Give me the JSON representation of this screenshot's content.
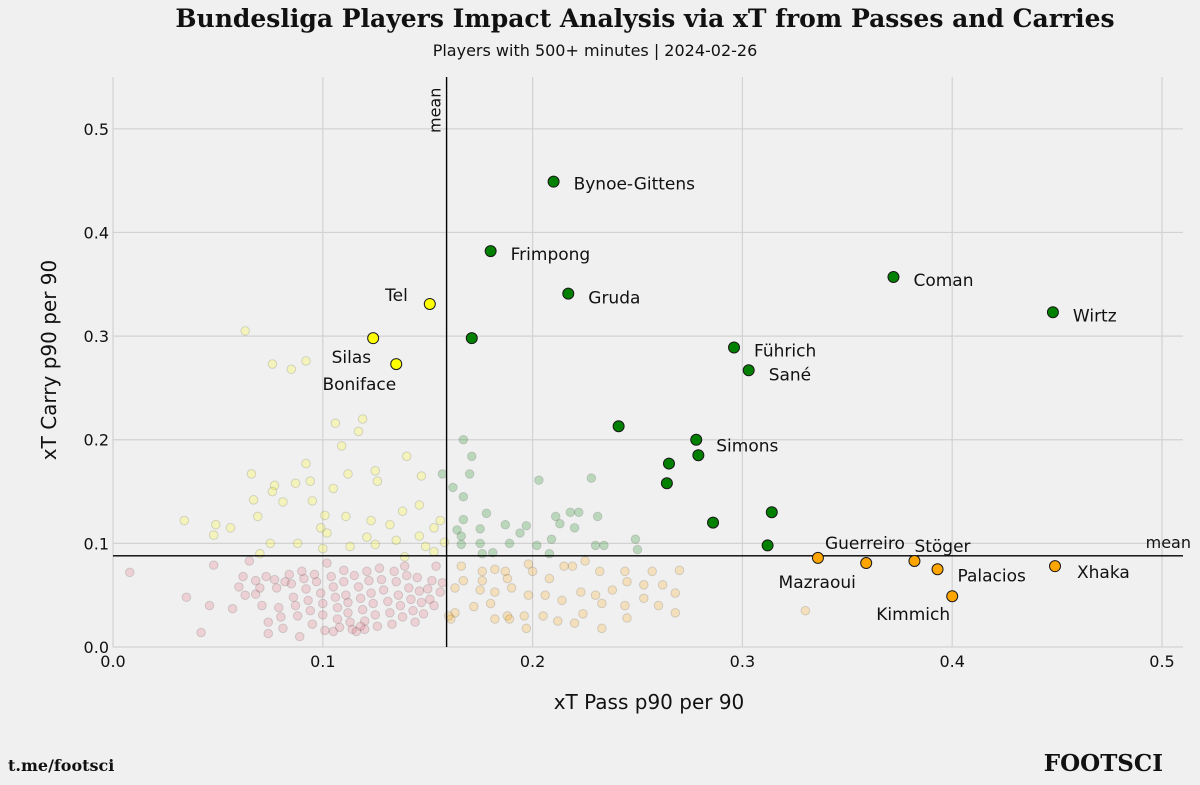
{
  "chart_data": {
    "type": "scatter",
    "title": "Bundesliga Players Impact Analysis via xT from Passes and Carries",
    "subtitle": "Players with 500+ minutes | 2024-02-26",
    "xlabel": "xT Pass p90 per 90",
    "ylabel": "xT Carry p90 per 90",
    "xlim": [
      0.0,
      0.51
    ],
    "ylim": [
      0.0,
      0.55
    ],
    "xticks": [
      "0.0",
      "0.1",
      "0.2",
      "0.3",
      "0.4",
      "0.5"
    ],
    "yticks": [
      "0.0",
      "0.1",
      "0.2",
      "0.3",
      "0.4",
      "0.5"
    ],
    "grid": true,
    "mean_x": 0.159,
    "mean_y": 0.088,
    "mean_label": "mean",
    "colors": {
      "high_both": "#008000",
      "high_carry": "#ffff00",
      "high_pass": "#ffa500",
      "low_both": "#e06070"
    },
    "highlighted": [
      {
        "label": "Bynoe-Gittens",
        "x": 0.21,
        "y": 0.449,
        "group": "high_both"
      },
      {
        "label": "Frimpong",
        "x": 0.18,
        "y": 0.382,
        "group": "high_both"
      },
      {
        "label": "Gruda",
        "x": 0.217,
        "y": 0.341,
        "group": "high_both"
      },
      {
        "label": "",
        "x": 0.171,
        "y": 0.298,
        "group": "high_both"
      },
      {
        "label": "Coman",
        "x": 0.372,
        "y": 0.357,
        "group": "high_both"
      },
      {
        "label": "Wirtz",
        "x": 0.448,
        "y": 0.323,
        "group": "high_both"
      },
      {
        "label": "Führich",
        "x": 0.296,
        "y": 0.289,
        "group": "high_both"
      },
      {
        "label": "Sané",
        "x": 0.303,
        "y": 0.267,
        "group": "high_both"
      },
      {
        "label": "",
        "x": 0.241,
        "y": 0.213,
        "group": "high_both"
      },
      {
        "label": "Simons",
        "x": 0.278,
        "y": 0.2,
        "group": "high_both"
      },
      {
        "label": "",
        "x": 0.279,
        "y": 0.185,
        "group": "high_both"
      },
      {
        "label": "",
        "x": 0.265,
        "y": 0.177,
        "group": "high_both"
      },
      {
        "label": "",
        "x": 0.264,
        "y": 0.158,
        "group": "high_both"
      },
      {
        "label": "",
        "x": 0.314,
        "y": 0.13,
        "group": "high_both"
      },
      {
        "label": "",
        "x": 0.286,
        "y": 0.12,
        "group": "high_both"
      },
      {
        "label": "",
        "x": 0.312,
        "y": 0.098,
        "group": "high_both"
      },
      {
        "label": "Tel",
        "x": 0.151,
        "y": 0.331,
        "group": "high_carry"
      },
      {
        "label": "Silas",
        "x": 0.124,
        "y": 0.298,
        "group": "high_carry"
      },
      {
        "label": "Boniface",
        "x": 0.135,
        "y": 0.273,
        "group": "high_carry"
      },
      {
        "label": "Guerreiro",
        "x": 0.336,
        "y": 0.086,
        "group": "high_pass"
      },
      {
        "label": "Mazraoui",
        "x": 0.359,
        "y": 0.081,
        "group": "high_pass"
      },
      {
        "label": "Stöger",
        "x": 0.382,
        "y": 0.083,
        "group": "high_pass"
      },
      {
        "label": "Palacios",
        "x": 0.393,
        "y": 0.075,
        "group": "high_pass"
      },
      {
        "label": "Xhaka",
        "x": 0.449,
        "y": 0.078,
        "group": "high_pass"
      },
      {
        "label": "Kimmich",
        "x": 0.4,
        "y": 0.049,
        "group": "high_pass"
      }
    ],
    "background_points": {
      "high_carry": [
        [
          0.063,
          0.305
        ],
        [
          0.076,
          0.273
        ],
        [
          0.085,
          0.268
        ],
        [
          0.092,
          0.276
        ],
        [
          0.119,
          0.22
        ],
        [
          0.117,
          0.208
        ],
        [
          0.106,
          0.216
        ],
        [
          0.109,
          0.194
        ],
        [
          0.14,
          0.184
        ],
        [
          0.125,
          0.17
        ],
        [
          0.112,
          0.167
        ],
        [
          0.147,
          0.165
        ],
        [
          0.092,
          0.177
        ],
        [
          0.066,
          0.167
        ],
        [
          0.077,
          0.156
        ],
        [
          0.087,
          0.158
        ],
        [
          0.094,
          0.16
        ],
        [
          0.105,
          0.153
        ],
        [
          0.126,
          0.16
        ],
        [
          0.146,
          0.137
        ],
        [
          0.138,
          0.131
        ],
        [
          0.123,
          0.122
        ],
        [
          0.111,
          0.126
        ],
        [
          0.101,
          0.127
        ],
        [
          0.095,
          0.141
        ],
        [
          0.081,
          0.14
        ],
        [
          0.076,
          0.15
        ],
        [
          0.067,
          0.142
        ],
        [
          0.069,
          0.126
        ],
        [
          0.056,
          0.115
        ],
        [
          0.049,
          0.118
        ],
        [
          0.034,
          0.122
        ],
        [
          0.048,
          0.108
        ],
        [
          0.099,
          0.115
        ],
        [
          0.132,
          0.118
        ],
        [
          0.153,
          0.115
        ],
        [
          0.156,
          0.122
        ],
        [
          0.146,
          0.107
        ],
        [
          0.135,
          0.103
        ],
        [
          0.121,
          0.106
        ],
        [
          0.102,
          0.11
        ],
        [
          0.088,
          0.1
        ],
        [
          0.075,
          0.1
        ],
        [
          0.07,
          0.09
        ],
        [
          0.1,
          0.095
        ],
        [
          0.125,
          0.099
        ],
        [
          0.153,
          0.092
        ],
        [
          0.139,
          0.087
        ],
        [
          0.158,
          0.101
        ],
        [
          0.149,
          0.097
        ],
        [
          0.113,
          0.097
        ]
      ],
      "high_both": [
        [
          0.167,
          0.2
        ],
        [
          0.171,
          0.184
        ],
        [
          0.17,
          0.167
        ],
        [
          0.157,
          0.167
        ],
        [
          0.162,
          0.154
        ],
        [
          0.167,
          0.145
        ],
        [
          0.178,
          0.129
        ],
        [
          0.167,
          0.123
        ],
        [
          0.164,
          0.113
        ],
        [
          0.175,
          0.114
        ],
        [
          0.187,
          0.118
        ],
        [
          0.197,
          0.117
        ],
        [
          0.203,
          0.161
        ],
        [
          0.211,
          0.126
        ],
        [
          0.218,
          0.13
        ],
        [
          0.222,
          0.13
        ],
        [
          0.213,
          0.119
        ],
        [
          0.22,
          0.115
        ],
        [
          0.228,
          0.163
        ],
        [
          0.231,
          0.126
        ],
        [
          0.209,
          0.104
        ],
        [
          0.194,
          0.11
        ],
        [
          0.189,
          0.1
        ],
        [
          0.175,
          0.1
        ],
        [
          0.166,
          0.107
        ],
        [
          0.166,
          0.099
        ],
        [
          0.181,
          0.091
        ],
        [
          0.202,
          0.098
        ],
        [
          0.23,
          0.098
        ],
        [
          0.234,
          0.098
        ],
        [
          0.249,
          0.104
        ],
        [
          0.25,
          0.094
        ],
        [
          0.176,
          0.09
        ],
        [
          0.208,
          0.09
        ]
      ],
      "high_pass": [
        [
          0.166,
          0.078
        ],
        [
          0.176,
          0.073
        ],
        [
          0.182,
          0.075
        ],
        [
          0.187,
          0.073
        ],
        [
          0.198,
          0.08
        ],
        [
          0.2,
          0.073
        ],
        [
          0.215,
          0.078
        ],
        [
          0.219,
          0.078
        ],
        [
          0.225,
          0.083
        ],
        [
          0.232,
          0.073
        ],
        [
          0.244,
          0.073
        ],
        [
          0.257,
          0.073
        ],
        [
          0.27,
          0.074
        ],
        [
          0.208,
          0.066
        ],
        [
          0.188,
          0.066
        ],
        [
          0.176,
          0.064
        ],
        [
          0.167,
          0.064
        ],
        [
          0.163,
          0.057
        ],
        [
          0.175,
          0.055
        ],
        [
          0.182,
          0.053
        ],
        [
          0.19,
          0.057
        ],
        [
          0.198,
          0.05
        ],
        [
          0.206,
          0.05
        ],
        [
          0.214,
          0.045
        ],
        [
          0.223,
          0.053
        ],
        [
          0.23,
          0.05
        ],
        [
          0.238,
          0.055
        ],
        [
          0.245,
          0.063
        ],
        [
          0.253,
          0.06
        ],
        [
          0.262,
          0.06
        ],
        [
          0.268,
          0.052
        ],
        [
          0.244,
          0.04
        ],
        [
          0.233,
          0.042
        ],
        [
          0.224,
          0.032
        ],
        [
          0.205,
          0.03
        ],
        [
          0.196,
          0.03
        ],
        [
          0.188,
          0.03
        ],
        [
          0.18,
          0.042
        ],
        [
          0.172,
          0.039
        ],
        [
          0.163,
          0.033
        ],
        [
          0.161,
          0.027
        ],
        [
          0.182,
          0.027
        ],
        [
          0.189,
          0.027
        ],
        [
          0.197,
          0.018
        ],
        [
          0.212,
          0.025
        ],
        [
          0.22,
          0.023
        ],
        [
          0.233,
          0.018
        ],
        [
          0.245,
          0.028
        ],
        [
          0.26,
          0.04
        ],
        [
          0.268,
          0.033
        ],
        [
          0.33,
          0.035
        ],
        [
          0.253,
          0.047
        ],
        [
          0.16,
          0.03
        ]
      ],
      "low_both": [
        [
          0.008,
          0.072
        ],
        [
          0.035,
          0.048
        ],
        [
          0.042,
          0.014
        ],
        [
          0.046,
          0.04
        ],
        [
          0.048,
          0.079
        ],
        [
          0.057,
          0.037
        ],
        [
          0.06,
          0.058
        ],
        [
          0.062,
          0.068
        ],
        [
          0.065,
          0.083
        ],
        [
          0.068,
          0.064
        ],
        [
          0.068,
          0.051
        ],
        [
          0.07,
          0.057
        ],
        [
          0.071,
          0.04
        ],
        [
          0.073,
          0.068
        ],
        [
          0.074,
          0.024
        ],
        [
          0.074,
          0.013
        ],
        [
          0.077,
          0.065
        ],
        [
          0.078,
          0.057
        ],
        [
          0.079,
          0.038
        ],
        [
          0.08,
          0.029
        ],
        [
          0.081,
          0.018
        ],
        [
          0.082,
          0.063
        ],
        [
          0.084,
          0.07
        ],
        [
          0.085,
          0.061
        ],
        [
          0.086,
          0.048
        ],
        [
          0.087,
          0.04
        ],
        [
          0.088,
          0.03
        ],
        [
          0.089,
          0.01
        ],
        [
          0.09,
          0.073
        ],
        [
          0.091,
          0.066
        ],
        [
          0.092,
          0.056
        ],
        [
          0.093,
          0.045
        ],
        [
          0.094,
          0.035
        ],
        [
          0.095,
          0.022
        ],
        [
          0.096,
          0.07
        ],
        [
          0.097,
          0.063
        ],
        [
          0.099,
          0.052
        ],
        [
          0.1,
          0.042
        ],
        [
          0.1,
          0.031
        ],
        [
          0.101,
          0.016
        ],
        [
          0.102,
          0.081
        ],
        [
          0.104,
          0.068
        ],
        [
          0.105,
          0.058
        ],
        [
          0.106,
          0.048
        ],
        [
          0.107,
          0.038
        ],
        [
          0.107,
          0.027
        ],
        [
          0.108,
          0.019
        ],
        [
          0.11,
          0.074
        ],
        [
          0.11,
          0.063
        ],
        [
          0.111,
          0.05
        ],
        [
          0.112,
          0.043
        ],
        [
          0.112,
          0.033
        ],
        [
          0.113,
          0.024
        ],
        [
          0.114,
          0.017
        ],
        [
          0.115,
          0.069
        ],
        [
          0.117,
          0.058
        ],
        [
          0.118,
          0.047
        ],
        [
          0.119,
          0.036
        ],
        [
          0.12,
          0.025
        ],
        [
          0.12,
          0.017
        ],
        [
          0.121,
          0.073
        ],
        [
          0.122,
          0.064
        ],
        [
          0.123,
          0.052
        ],
        [
          0.124,
          0.042
        ],
        [
          0.125,
          0.031
        ],
        [
          0.126,
          0.02
        ],
        [
          0.127,
          0.076
        ],
        [
          0.128,
          0.065
        ],
        [
          0.129,
          0.055
        ],
        [
          0.131,
          0.044
        ],
        [
          0.132,
          0.033
        ],
        [
          0.133,
          0.022
        ],
        [
          0.134,
          0.073
        ],
        [
          0.135,
          0.063
        ],
        [
          0.136,
          0.05
        ],
        [
          0.137,
          0.04
        ],
        [
          0.138,
          0.029
        ],
        [
          0.139,
          0.078
        ],
        [
          0.14,
          0.069
        ],
        [
          0.141,
          0.057
        ],
        [
          0.142,
          0.046
        ],
        [
          0.143,
          0.035
        ],
        [
          0.144,
          0.024
        ],
        [
          0.145,
          0.067
        ],
        [
          0.146,
          0.054
        ],
        [
          0.147,
          0.043
        ],
        [
          0.148,
          0.032
        ],
        [
          0.15,
          0.056
        ],
        [
          0.151,
          0.046
        ],
        [
          0.152,
          0.064
        ],
        [
          0.153,
          0.04
        ],
        [
          0.154,
          0.078
        ],
        [
          0.156,
          0.053
        ],
        [
          0.157,
          0.062
        ],
        [
          0.105,
          0.015
        ],
        [
          0.116,
          0.015
        ],
        [
          0.118,
          0.02
        ],
        [
          0.063,
          0.05
        ]
      ]
    },
    "credits": {
      "left": "t.me/footsci",
      "right": "FOOTSCI"
    }
  }
}
